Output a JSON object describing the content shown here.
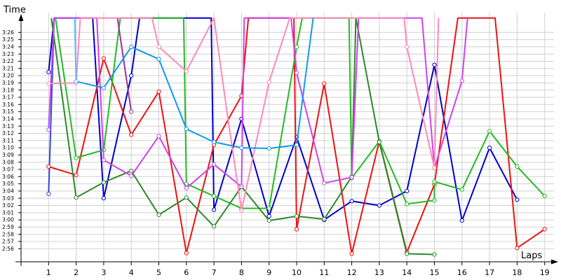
{
  "chart_data": {
    "type": "line",
    "x_axis_label": "Laps",
    "y_axis_label": "Time",
    "x_ticks": [
      "1",
      "2",
      "3",
      "4",
      "5",
      "6",
      "7",
      "8",
      "9",
      "10",
      "11",
      "12",
      "13",
      "14",
      "15",
      "16",
      "17",
      "18",
      "19"
    ],
    "y_ticks": [
      "2:56",
      "2:57",
      "2:58",
      "2:59",
      "3:00",
      "3:01",
      "3:02",
      "3:03",
      "3:04",
      "3:05",
      "3:06",
      "3:07",
      "3:08",
      "3:09",
      "3:10",
      "3:11",
      "3:12",
      "3:13",
      "3:14",
      "3:15",
      "3:16",
      "3:17",
      "3:18",
      "3:19",
      "3:20",
      "3:21",
      "3:22",
      "3:23",
      "3:24",
      "3:25",
      "3:26"
    ],
    "y_units": "seconds",
    "ylim": [
      174,
      208
    ],
    "grid": true,
    "series": [
      {
        "color": "#0000cc",
        "values": [
          [
            1,
            200.5
          ],
          [
            1.2,
            208
          ],
          [
            2.6,
            208
          ],
          [
            3,
            183
          ],
          [
            4,
            200
          ],
          [
            4.3,
            208
          ],
          [
            6.9,
            208
          ],
          [
            7,
            181.4
          ],
          [
            8,
            194
          ],
          [
            9,
            180.5
          ],
          [
            10,
            191.5
          ],
          [
            11,
            180
          ],
          [
            12,
            182.6
          ],
          [
            13,
            182
          ],
          [
            14,
            184
          ],
          [
            15,
            201.5
          ],
          [
            16,
            179.9
          ],
          [
            17,
            190
          ],
          [
            18,
            182.8
          ]
        ]
      },
      {
        "color": "#3344dd",
        "values": [
          [
            1,
            183.6
          ],
          [
            1.2,
            208
          ]
        ]
      },
      {
        "color": "#ee1111",
        "values": [
          [
            1,
            187.4
          ],
          [
            2,
            186.2
          ],
          [
            3,
            202.4
          ],
          [
            4,
            191.8
          ],
          [
            5,
            197.8
          ],
          [
            6,
            175.4
          ],
          [
            7,
            190.4
          ],
          [
            8,
            197.2
          ],
          [
            8.25,
            208
          ],
          [
            9.9,
            208
          ],
          [
            10,
            178.7
          ],
          [
            11,
            198.9
          ],
          [
            12,
            175.3
          ],
          [
            13,
            190.9
          ],
          [
            14,
            175.5
          ],
          [
            15,
            184.9
          ],
          [
            15.85,
            208
          ],
          [
            17.2,
            208
          ],
          [
            18,
            176.1
          ],
          [
            19,
            178.7
          ]
        ]
      },
      {
        "color": "#22bb22",
        "values": [
          [
            1.25,
            208
          ],
          [
            2,
            188.6
          ],
          [
            3,
            189.7
          ],
          [
            3.6,
            208
          ],
          [
            5.9,
            208
          ],
          [
            6,
            185
          ],
          [
            7,
            183.3
          ],
          [
            8,
            181.6
          ],
          [
            9,
            181.6
          ],
          [
            10,
            204
          ],
          [
            10.2,
            208
          ],
          [
            11.9,
            208
          ],
          [
            12,
            185.8
          ],
          [
            13,
            190.9
          ],
          [
            14,
            182.2
          ],
          [
            15,
            182.7
          ],
          [
            15,
            185.3
          ],
          [
            16,
            184.2
          ],
          [
            17,
            192.3
          ],
          [
            18,
            187.4
          ],
          [
            19,
            183.3
          ]
        ]
      },
      {
        "color": "#2a8a2a",
        "values": [
          [
            1.1,
            208
          ],
          [
            2,
            183.1
          ],
          [
            3,
            185.2
          ],
          [
            4,
            186.8
          ],
          [
            5,
            180.7
          ],
          [
            6,
            183.1
          ],
          [
            7,
            179.1
          ],
          [
            8,
            184.6
          ],
          [
            9,
            179.9
          ],
          [
            10,
            180.5
          ],
          [
            11,
            180.1
          ],
          [
            12,
            186
          ],
          [
            12.15,
            208
          ],
          [
            13,
            190.8
          ],
          [
            14,
            175.3
          ],
          [
            15,
            175.2
          ]
        ]
      },
      {
        "color": "#cc44ee",
        "values": [
          [
            1,
            192.5
          ],
          [
            1.2,
            208
          ],
          [
            2.75,
            208
          ],
          [
            3,
            188.3
          ],
          [
            4,
            186.1
          ],
          [
            5,
            191.6
          ],
          [
            6,
            184.4
          ],
          [
            7,
            187.7
          ],
          [
            8,
            184.6
          ],
          [
            8.1,
            208
          ],
          [
            9.8,
            208
          ],
          [
            10,
            200.4
          ],
          [
            11,
            185.1
          ],
          [
            12,
            185.9
          ],
          [
            12.25,
            208
          ],
          [
            14.55,
            208
          ],
          [
            15,
            187.2
          ],
          [
            16,
            199.3
          ],
          [
            16.2,
            208
          ]
        ]
      },
      {
        "color": "#993399",
        "values": [
          [
            3.5,
            208
          ],
          [
            4,
            195
          ]
        ]
      },
      {
        "color": "#ff88bb",
        "values": [
          [
            1,
            198.9
          ],
          [
            2,
            199
          ],
          [
            2.15,
            208
          ],
          [
            4.75,
            208
          ],
          [
            5,
            204
          ],
          [
            6,
            200.6
          ],
          [
            7,
            208
          ],
          [
            7.5,
            194.2
          ],
          [
            8,
            181.3
          ],
          [
            9,
            199.1
          ],
          [
            9.75,
            208
          ],
          [
            13.9,
            208
          ],
          [
            14,
            204
          ],
          [
            15,
            187.2
          ],
          [
            15.15,
            208
          ]
        ]
      },
      {
        "color": "#1199ee",
        "values": [
          [
            2,
            199.2
          ],
          [
            3,
            198.3
          ],
          [
            4,
            204
          ],
          [
            5,
            202.3
          ],
          [
            6,
            192.6
          ],
          [
            7,
            190.8
          ],
          [
            8,
            190
          ],
          [
            9,
            189.9
          ],
          [
            10,
            190.4
          ],
          [
            10.6,
            208
          ]
        ]
      },
      {
        "color": "#55bbff",
        "values": [
          [
            1.95,
            208
          ],
          [
            2,
            199.2
          ]
        ]
      }
    ]
  }
}
